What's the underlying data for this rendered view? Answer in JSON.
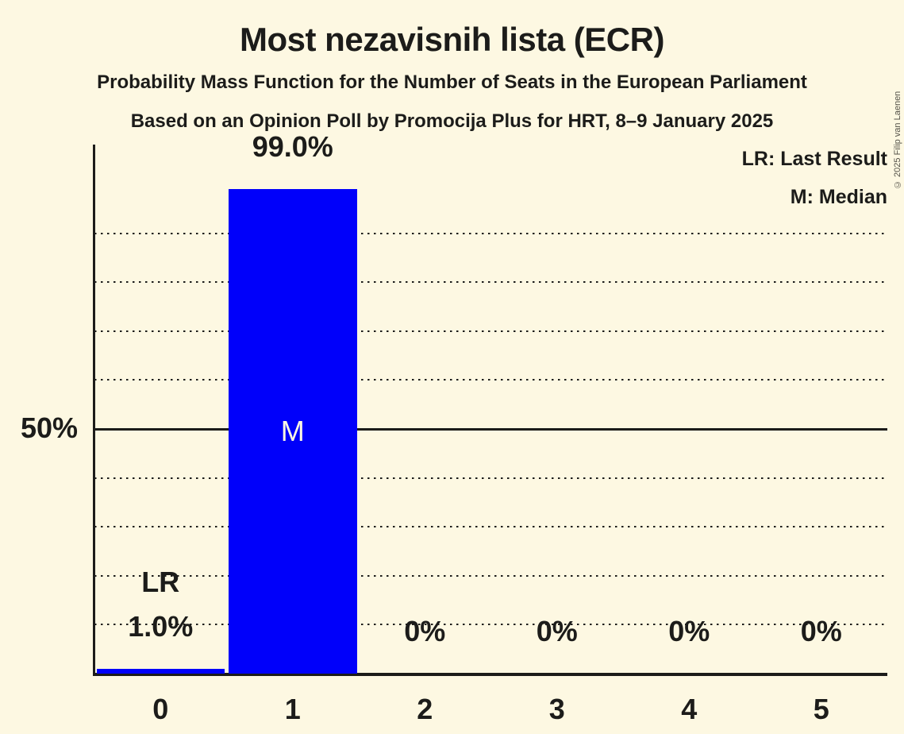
{
  "title": "Most nezavisnih lista (ECR)",
  "subtitle1": "Probability Mass Function for the Number of Seats in the European Parliament",
  "subtitle2": "Based on an Opinion Poll by Promocija Plus for HRT, 8–9 January 2025",
  "copyright": "© 2025 Filip van Laenen",
  "legend": {
    "lr": "LR: Last Result",
    "m": "M: Median"
  },
  "y_axis": {
    "label_50": "50%"
  },
  "chart_data": {
    "type": "bar",
    "title": "Most nezavisnih lista (ECR)",
    "categories": [
      "0",
      "1",
      "2",
      "3",
      "4",
      "5"
    ],
    "values": [
      1.0,
      99.0,
      0,
      0,
      0,
      0
    ],
    "value_labels": [
      "1.0%",
      "99.0%",
      "0%",
      "0%",
      "0%",
      "0%"
    ],
    "xlabel": "",
    "ylabel": "",
    "ylim": [
      0,
      100
    ],
    "gridlines_pct": [
      10,
      20,
      30,
      40,
      60,
      70,
      80,
      90
    ],
    "solid_line_pct": 50,
    "grid_style": "dotted",
    "legend_position": "top-right",
    "bar_color": "#0000fa",
    "background_color": "#fdf8e2",
    "text_color": "#1c1c1a",
    "median_marker": "M",
    "median_marker_color": "#fdf8e2",
    "median_category_index": 1,
    "last_result_marker": "LR",
    "last_result_category_index": 0
  }
}
